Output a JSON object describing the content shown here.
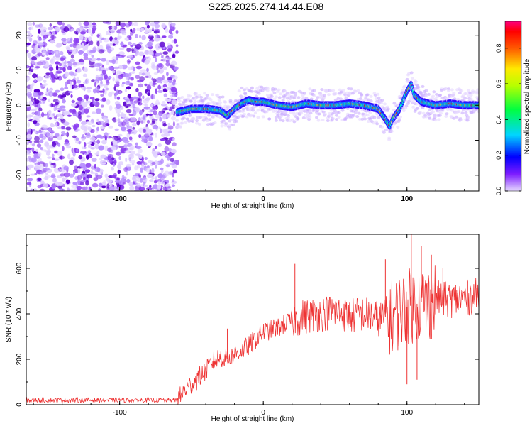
{
  "title": "S225.2025.274.14.44.E08",
  "chart_data": [
    {
      "type": "heatmap",
      "xlabel": "Height of straight line (km)",
      "ylabel": "Frequency (Hz)",
      "colorbar_label": "Normalized spectral amplitude",
      "xlim": [
        -165,
        150
      ],
      "ylim": [
        -24.5,
        24
      ],
      "xticks": [
        -100,
        0,
        100
      ],
      "yticks": [
        -20,
        -10,
        0,
        10,
        20
      ],
      "colorbar_ticks": [
        0.0,
        0.2,
        0.4,
        0.6,
        0.8
      ],
      "colorbar_range": [
        0,
        0.95
      ],
      "noise_region_x": [
        -165,
        -60
      ],
      "ridge": {
        "x": [
          -60,
          -50,
          -40,
          -30,
          -25,
          -20,
          -15,
          -10,
          -5,
          0,
          10,
          20,
          30,
          40,
          50,
          60,
          70,
          80,
          85,
          88,
          90,
          95,
          100,
          103,
          105,
          110,
          115,
          120,
          130,
          140,
          150
        ],
        "y": [
          -2,
          -1,
          -1,
          -1.5,
          -3,
          -1,
          0.5,
          1.5,
          1,
          1,
          0,
          -0.5,
          0.5,
          0,
          0,
          0.5,
          0,
          -1,
          -4,
          -6,
          -4,
          -1,
          4,
          6,
          3,
          1,
          0.5,
          0,
          0.5,
          0,
          0
        ]
      }
    },
    {
      "type": "line",
      "xlabel": "Height of straight line (km)",
      "ylabel": "SNR (10 * v/v)",
      "xlim": [
        -165,
        150
      ],
      "ylim": [
        0,
        750
      ],
      "xticks": [
        -100,
        0,
        100
      ],
      "yticks": [
        0,
        200,
        400,
        600
      ],
      "color": "#ee3333",
      "series": [
        {
          "x": [
            -165,
            -150,
            -130,
            -110,
            -90,
            -75,
            -60,
            -55,
            -50,
            -45,
            -40,
            -35,
            -30,
            -25,
            -20,
            -10,
            0,
            10,
            20,
            30,
            40,
            50,
            60,
            70,
            80,
            90,
            100,
            110,
            115,
            120,
            130,
            140,
            150
          ],
          "y": [
            20,
            20,
            20,
            20,
            20,
            20,
            20,
            60,
            90,
            120,
            150,
            190,
            210,
            200,
            220,
            260,
            320,
            340,
            370,
            390,
            400,
            410,
            390,
            400,
            380,
            390,
            430,
            450,
            440,
            470,
            460,
            470,
            480
          ],
          "spikes_x": [
            -25,
            22,
            85,
            100,
            103,
            107,
            110,
            117,
            125
          ],
          "spikes_y": [
            335,
            620,
            640,
            90,
            750,
            110,
            700,
            660,
            600
          ]
        }
      ]
    }
  ]
}
